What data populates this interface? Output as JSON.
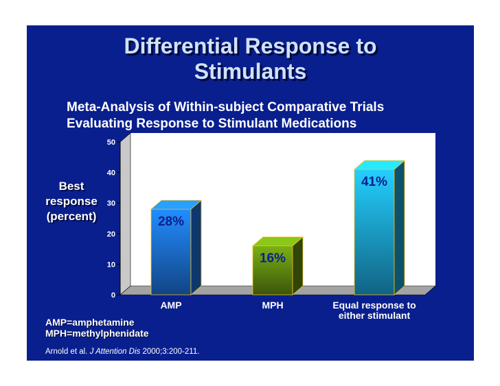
{
  "slide": {
    "title_lines": [
      "Differential Response to",
      "Stimulants"
    ],
    "subtitle_lines": [
      "Meta-Analysis of Within-subject Comparative Trials",
      "Evaluating Response to Stimulant Medications"
    ],
    "notes": [
      "AMP=amphetamine",
      "MPH=methylphenidate"
    ],
    "citation": {
      "authors": "Arnold et al.",
      "journal": "J Attention Dis",
      "details": "2000;3:200-211."
    },
    "colors": {
      "background": "#0a1f8e",
      "title": "#cfe2ff"
    }
  },
  "chart_data": {
    "type": "bar",
    "title": "",
    "ylabel_lines": [
      "Best",
      "response",
      "(percent)"
    ],
    "xlabel": "",
    "categories": [
      [
        "AMP"
      ],
      [
        "MPH"
      ],
      [
        "Equal response to",
        "either stimulant"
      ]
    ],
    "values": [
      28,
      16,
      41
    ],
    "data_labels": [
      "28%",
      "16%",
      "41%"
    ],
    "ylim": [
      0,
      50
    ],
    "yticks": [
      0,
      10,
      20,
      30,
      40,
      50
    ],
    "grid": false,
    "legend": "none",
    "bar_colors": [
      "#1e7bf0",
      "#6b9a12",
      "#1fb4ee"
    ],
    "label_colors": [
      "#0a1f8e",
      "#0a1f8e",
      "#0a1f8e"
    ]
  }
}
